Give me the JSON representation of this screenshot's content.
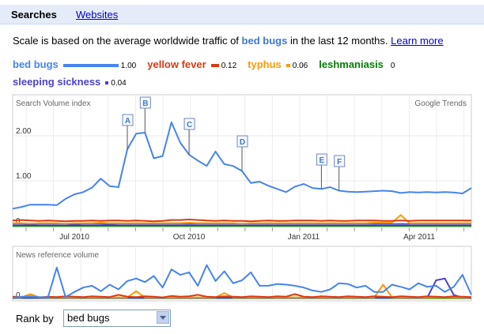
{
  "tabs": {
    "searches": "Searches",
    "websites": "Websites"
  },
  "scale_text": {
    "prefix": "Scale is based on the average worldwide traffic of ",
    "term": "bed bugs",
    "suffix": " in the last 12 months.",
    "link": "Learn more"
  },
  "rank": {
    "label": "Rank by",
    "selected": "bed bugs"
  },
  "colors": {
    "bed bugs": "#4684ee",
    "yellow fever": "#dc3912",
    "typhus": "#ff9900",
    "leshmaniasis": "#008000",
    "sleeping sickness": "#4942cc"
  },
  "chart_data": [
    {
      "type": "line",
      "title": "Search Volume index",
      "watermark": "Google Trends",
      "x_ticks": [
        "Jul 2010",
        "Oct 2010",
        "Jan 2011",
        "Apr 2011"
      ],
      "y_ticks": [
        "2.00",
        "1.00",
        "0"
      ],
      "ylim": [
        0,
        2.8
      ],
      "legend": [
        {
          "name": "bed bugs",
          "value": "1.00"
        },
        {
          "name": "yellow fever",
          "value": "0.12"
        },
        {
          "name": "typhus",
          "value": "0.06"
        },
        {
          "name": "leshmaniasis",
          "value": "0"
        },
        {
          "name": "sleeping sickness",
          "value": "0.04"
        }
      ],
      "annotations": [
        "A",
        "B",
        "C",
        "D",
        "E",
        "F"
      ],
      "series": [
        {
          "name": "bed bugs",
          "values": [
            0.38,
            0.42,
            0.47,
            0.47,
            0.47,
            0.46,
            0.6,
            0.7,
            0.75,
            0.85,
            1.05,
            0.88,
            0.86,
            1.7,
            2.05,
            2.07,
            1.5,
            1.55,
            2.3,
            1.85,
            1.58,
            1.45,
            1.33,
            1.65,
            1.37,
            1.33,
            1.22,
            0.95,
            0.98,
            0.89,
            0.82,
            0.75,
            0.87,
            0.93,
            0.84,
            0.82,
            0.86,
            0.78,
            0.76,
            0.75,
            0.76,
            0.77,
            0.78,
            0.77,
            0.73,
            0.75,
            0.74,
            0.75,
            0.74,
            0.75,
            0.74,
            0.72,
            0.84
          ]
        },
        {
          "name": "yellow fever",
          "values": [
            0.12,
            0.13,
            0.12,
            0.11,
            0.12,
            0.11,
            0.1,
            0.11,
            0.11,
            0.12,
            0.11,
            0.12,
            0.12,
            0.11,
            0.12,
            0.11,
            0.1,
            0.11,
            0.13,
            0.13,
            0.14,
            0.13,
            0.12,
            0.11,
            0.12,
            0.11,
            0.11,
            0.1,
            0.11,
            0.12,
            0.11,
            0.11,
            0.12,
            0.12,
            0.12,
            0.11,
            0.12,
            0.11,
            0.11,
            0.12,
            0.12,
            0.12,
            0.11,
            0.11,
            0.12,
            0.11,
            0.12,
            0.12,
            0.12,
            0.12,
            0.12,
            0.12,
            0.12
          ]
        },
        {
          "name": "typhus",
          "values": [
            0.06,
            0.06,
            0.05,
            0.06,
            0.06,
            0.06,
            0.05,
            0.06,
            0.06,
            0.06,
            0.07,
            0.06,
            0.06,
            0.06,
            0.06,
            0.06,
            0.06,
            0.06,
            0.06,
            0.06,
            0.07,
            0.06,
            0.06,
            0.06,
            0.06,
            0.06,
            0.05,
            0.06,
            0.06,
            0.06,
            0.06,
            0.06,
            0.06,
            0.06,
            0.06,
            0.06,
            0.06,
            0.06,
            0.06,
            0.06,
            0.06,
            0.07,
            0.07,
            0.07,
            0.24,
            0.06,
            0.06,
            0.06,
            0.06,
            0.06,
            0.06,
            0.06,
            0.06
          ]
        },
        {
          "name": "leshmaniasis",
          "values": [
            0,
            0,
            0,
            0,
            0,
            0,
            0,
            0,
            0,
            0,
            0,
            0,
            0,
            0,
            0,
            0,
            0,
            0,
            0,
            0,
            0,
            0,
            0,
            0,
            0,
            0,
            0,
            0,
            0,
            0,
            0,
            0,
            0,
            0,
            0,
            0,
            0,
            0,
            0,
            0,
            0,
            0,
            0,
            0,
            0,
            0,
            0,
            0,
            0,
            0,
            0,
            0,
            0
          ]
        },
        {
          "name": "sleeping sickness",
          "values": [
            0.04,
            0.04,
            0.03,
            0.04,
            0.04,
            0.04,
            0.04,
            0.03,
            0.04,
            0.04,
            0.04,
            0.03,
            0.04,
            0.04,
            0.04,
            0.04,
            0.04,
            0.04,
            0.04,
            0.04,
            0.04,
            0.04,
            0.04,
            0.04,
            0.04,
            0.04,
            0.04,
            0.04,
            0.04,
            0.04,
            0.04,
            0.04,
            0.04,
            0.04,
            0.04,
            0.04,
            0.04,
            0.04,
            0.04,
            0.04,
            0.04,
            0.04,
            0.04,
            0.04,
            0.04,
            0.04,
            0.04,
            0.04,
            0.04,
            0.04,
            0.04,
            0.04,
            0.04
          ]
        }
      ]
    },
    {
      "type": "line",
      "title": "News reference volume",
      "y_ticks": [
        "0"
      ],
      "ylim": [
        0,
        1
      ],
      "series": [
        {
          "name": "bed bugs",
          "values": [
            0.02,
            0.05,
            0.05,
            0.04,
            0.03,
            0.85,
            0.04,
            0.18,
            0.3,
            0.35,
            0.2,
            0.38,
            0.25,
            0.48,
            0.55,
            0.45,
            0.62,
            0.3,
            0.8,
            0.65,
            0.72,
            0.35,
            0.92,
            0.48,
            0.75,
            0.42,
            0.5,
            0.72,
            0.35,
            0.35,
            0.4,
            0.38,
            0.35,
            0.3,
            0.22,
            0.18,
            0.25,
            0.42,
            0.4,
            0.3,
            0.35,
            0.18,
            0.18,
            0.38,
            0.32,
            0.25,
            0.42,
            0.32,
            0.35,
            0.18,
            0.32,
            0.65,
            0.1
          ]
        },
        {
          "name": "yellow fever",
          "values": [
            0.05,
            0.04,
            0.06,
            0.03,
            0.05,
            0.04,
            0.06,
            0.05,
            0.04,
            0.06,
            0.05,
            0.04,
            0.1,
            0.05,
            0.04,
            0.06,
            0.05,
            0.03,
            0.07,
            0.05,
            0.06,
            0.1,
            0.05,
            0.04,
            0.06,
            0.05,
            0.04,
            0.06,
            0.05,
            0.04,
            0.06,
            0.05,
            0.12,
            0.05,
            0.04,
            0.06,
            0.05,
            0.04,
            0.06,
            0.05,
            0.04,
            0.06,
            0.05,
            0.04,
            0.06,
            0.05,
            0.04,
            0.06,
            0.05,
            0.04,
            0.06,
            0.05,
            0.04
          ]
        },
        {
          "name": "typhus",
          "values": [
            0.03,
            0.03,
            0.12,
            0.03,
            0.03,
            0.03,
            0.03,
            0.03,
            0.03,
            0.03,
            0.03,
            0.03,
            0.03,
            0.03,
            0.2,
            0.03,
            0.03,
            0.03,
            0.03,
            0.03,
            0.03,
            0.03,
            0.03,
            0.03,
            0.15,
            0.03,
            0.03,
            0.03,
            0.03,
            0.03,
            0.03,
            0.03,
            0.03,
            0.03,
            0.03,
            0.03,
            0.03,
            0.03,
            0.03,
            0.03,
            0.03,
            0.03,
            0.38,
            0.03,
            0.03,
            0.03,
            0.03,
            0.03,
            0.03,
            0.03,
            0.03,
            0.03,
            0.03
          ]
        },
        {
          "name": "leshmaniasis",
          "values": [
            0.01,
            0.01,
            0.01,
            0.01,
            0.01,
            0.01,
            0.01,
            0.01,
            0.01,
            0.01,
            0.01,
            0.01,
            0.01,
            0.01,
            0.01,
            0.01,
            0.01,
            0.01,
            0.01,
            0.01,
            0.01,
            0.01,
            0.01,
            0.01,
            0.01,
            0.01,
            0.01,
            0.01,
            0.01,
            0.01,
            0.01,
            0.01,
            0.01,
            0.01,
            0.01,
            0.01,
            0.01,
            0.01,
            0.01,
            0.01,
            0.01,
            0.01,
            0.01,
            0.01,
            0.01,
            0.01,
            0.01,
            0.01,
            0.01,
            0.01,
            0.01,
            0.01,
            0.01
          ]
        },
        {
          "name": "sleeping sickness",
          "values": [
            0.02,
            0.02,
            0.02,
            0.02,
            0.02,
            0.02,
            0.02,
            0.02,
            0.02,
            0.02,
            0.02,
            0.02,
            0.02,
            0.02,
            0.02,
            0.02,
            0.02,
            0.02,
            0.02,
            0.02,
            0.02,
            0.02,
            0.02,
            0.02,
            0.02,
            0.02,
            0.02,
            0.02,
            0.02,
            0.02,
            0.02,
            0.02,
            0.02,
            0.02,
            0.02,
            0.02,
            0.02,
            0.02,
            0.02,
            0.02,
            0.02,
            0.02,
            0.02,
            0.02,
            0.02,
            0.02,
            0.02,
            0.02,
            0.5,
            0.55,
            0.1,
            0.02,
            0.02
          ]
        }
      ]
    }
  ]
}
